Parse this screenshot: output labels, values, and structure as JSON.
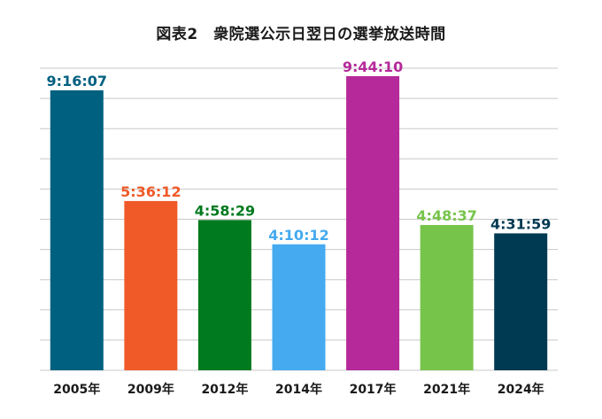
{
  "chart_data": {
    "type": "bar",
    "title": "図表2　衆院選公示日翌日の選挙放送時間",
    "xlabel": "",
    "ylabel": "",
    "categories": [
      "2005年",
      "2009年",
      "2012年",
      "2014年",
      "2017年",
      "2021年",
      "2024年"
    ],
    "value_labels": [
      "9:16:07",
      "5:36:12",
      "4:58:29",
      "4:10:12",
      "9:44:10",
      "4:48:37",
      "4:31:59"
    ],
    "values": [
      9.2686,
      5.6033,
      4.9747,
      4.17,
      9.7361,
      4.8103,
      4.5331
    ],
    "value_unit": "hours",
    "ylim": [
      0,
      10
    ],
    "yticks": [
      0,
      1,
      2,
      3,
      4,
      5,
      6,
      7,
      8,
      9,
      10
    ],
    "show_tick_labels": false,
    "grid": true,
    "colors": [
      "#006080",
      "#f05a28",
      "#007a1e",
      "#45aaf0",
      "#b5299a",
      "#77c44b",
      "#003a52"
    ]
  }
}
